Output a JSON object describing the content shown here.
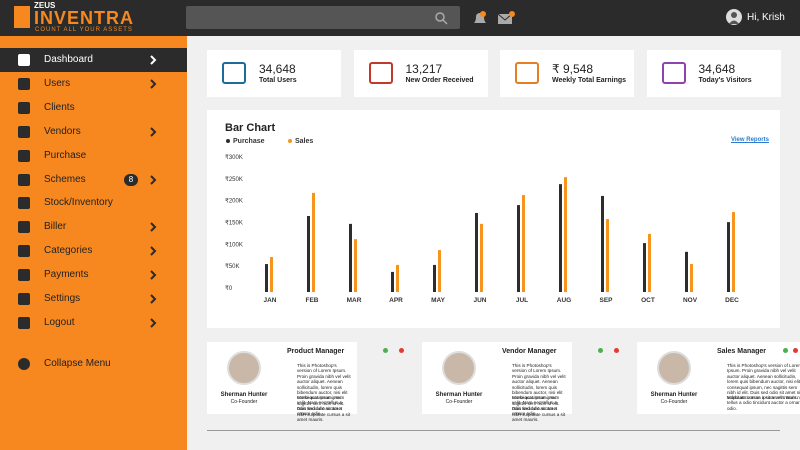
{
  "logo": {
    "brand": "ZEUS",
    "name": "INVENTRA",
    "tagline": "COUNT ALL YOUR ASSETS"
  },
  "header": {
    "greeting": "Hi, Krish"
  },
  "sidebar": {
    "items": [
      {
        "label": "Dashboard",
        "arrow": true
      },
      {
        "label": "Users",
        "arrow": true
      },
      {
        "label": "Clients",
        "arrow": false
      },
      {
        "label": "Vendors",
        "arrow": true
      },
      {
        "label": "Purchase",
        "arrow": false
      },
      {
        "label": "Schemes",
        "arrow": true,
        "badge": "8"
      },
      {
        "label": "Stock/Inventory",
        "arrow": false
      },
      {
        "label": "Biller",
        "arrow": true
      },
      {
        "label": "Categories",
        "arrow": true
      },
      {
        "label": "Payments",
        "arrow": true
      },
      {
        "label": "Settings",
        "arrow": true
      },
      {
        "label": "Logout",
        "arrow": true
      }
    ],
    "collapse": "Collapse Menu"
  },
  "stats": [
    {
      "value": "34,648",
      "label": "Total Users"
    },
    {
      "value": "13,217",
      "label": "New Order Received"
    },
    {
      "value": "₹ 9,548",
      "label": "Weekly Total Earnings"
    },
    {
      "value": "34,648",
      "label": "Today's Visitors"
    }
  ],
  "bar_chart": {
    "type": "bar",
    "title": "Bar Chart",
    "link": "View Reports",
    "categories": [
      "JAN",
      "FEB",
      "MAR",
      "APR",
      "MAY",
      "JUN",
      "JUL",
      "AUG",
      "SEP",
      "OCT",
      "NOV",
      "DEC"
    ],
    "series": [
      {
        "name": "Purchase",
        "color": "#2d2d2d",
        "values": [
          64000,
          174000,
          156000,
          46000,
          62000,
          181000,
          199000,
          247000,
          220000,
          112000,
          92000,
          160000
        ]
      },
      {
        "name": "Sales",
        "color": "#f7941d",
        "values": [
          80000,
          227000,
          121000,
          62000,
          96000,
          156000,
          222000,
          263000,
          167000,
          133000,
          64000,
          183000
        ]
      }
    ],
    "ylim": [
      0,
      300000
    ],
    "yticks": [
      {
        "value": 0,
        "label": "₹0"
      },
      {
        "value": 50000,
        "label": "₹50K"
      },
      {
        "value": 100000,
        "label": "₹100K"
      },
      {
        "value": 150000,
        "label": "₹150K"
      },
      {
        "value": 200000,
        "label": "₹200K"
      },
      {
        "value": 250000,
        "label": "₹250K"
      },
      {
        "value": 300000,
        "label": "₹300K"
      }
    ]
  },
  "profiles": [
    {
      "role": "Product Manager",
      "name": "Sherman Hunter",
      "title": "Co-Founder",
      "text": [
        "This is Photoshop's version of Lorem Ipsum. Proin gravida nibh vel velit auctor aliquet. Aenean sollicitudin, lorem quis bibendum auctor, nisi elit consequat ipsum, nec sagittis sem nibh id elit. Duis sed odio sit amet nibh vulputate cursus a sit amet mauris.",
        "Morbi accumsan ipsum velit. Nam nec tellus a odio tincidunt auctor a ornare odio."
      ]
    },
    {
      "role": "Vendor Manager",
      "name": "Sherman Hunter",
      "title": "Co-Founder",
      "text": [
        "This is Photoshop's version of Lorem Ipsum. Proin gravida nibh vel velit auctor aliquet. Aenean sollicitudin, lorem quis bibendum auctor, nisi elit consequat ipsum, nec sagittis sem nibh id elit. Duis sed odio sit amet nibh vulputate cursus a sit amet mauris.",
        "Morbi accumsan ipsum velit. Nam nec tellus a odio tincidunt auctor a ornare odio."
      ]
    },
    {
      "role": "Sales Manager",
      "name": "Sherman Hunter",
      "title": "Co-Founder",
      "text": [
        "This is Photoshop's version of Lorem Ipsum. Proin gravida nibh vel velit auctor aliquet. Aenean sollicitudin, lorem quis bibendum auctor, nisi elit consequat ipsum, nec sagittis sem nibh id elit. Duis sed odio sit amet nibh vulputate cursus a sit amet mauris.",
        "Morbi accumsan ipsum velit. Nam nec tellus a odio tincidunt auctor a ornare odio."
      ]
    }
  ]
}
